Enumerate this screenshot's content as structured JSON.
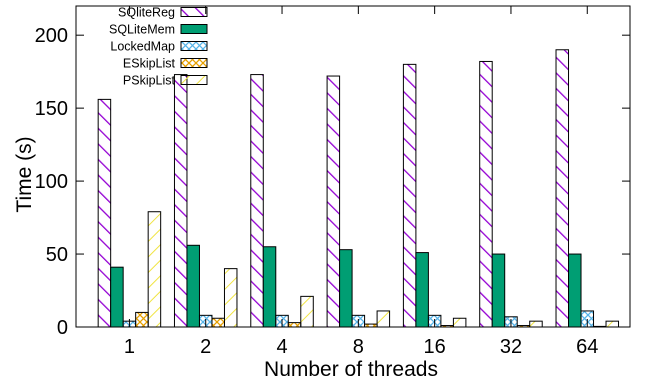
{
  "chart_data": {
    "type": "bar",
    "xlabel": "Number of threads",
    "ylabel": "Time (s)",
    "ylim": [
      0,
      220
    ],
    "yticks": [
      0,
      50,
      100,
      150,
      200
    ],
    "categories": [
      "1",
      "2",
      "4",
      "8",
      "16",
      "32",
      "64"
    ],
    "grid": false,
    "legend_position": "top-left",
    "series": [
      {
        "name": "SQliteReg",
        "pattern": "diag-purple",
        "color": "#9400d3",
        "values": [
          156,
          173,
          173,
          172,
          180,
          182,
          190
        ]
      },
      {
        "name": "SQLiteMem",
        "pattern": "solid-green",
        "color": "#009e73",
        "values": [
          41,
          56,
          55,
          53,
          51,
          50,
          50
        ]
      },
      {
        "name": "LockedMap",
        "pattern": "cross-blue",
        "color": "#56b4e9",
        "values": [
          4,
          8,
          8,
          8,
          8,
          7,
          11
        ]
      },
      {
        "name": "ESkipList",
        "pattern": "cross-orange",
        "color": "#e69f00",
        "values": [
          10,
          6,
          3,
          2,
          1,
          1,
          0
        ]
      },
      {
        "name": "PSkipList",
        "pattern": "diag-yellow",
        "color": "#f0e442",
        "values": [
          79,
          40,
          21,
          11,
          6,
          4,
          4
        ]
      }
    ]
  }
}
